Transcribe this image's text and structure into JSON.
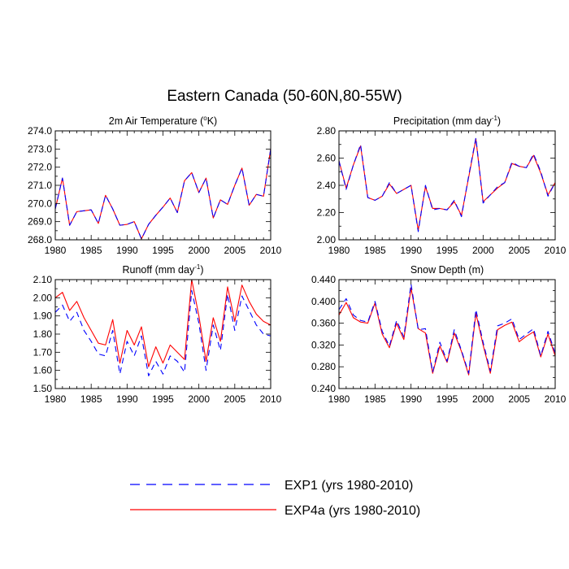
{
  "figure": {
    "title": "Eastern Canada (50-60N,80-55W)",
    "legend": [
      {
        "label": "EXP1 (yrs 1980-2010)",
        "color": "#0000ff",
        "style": "dashed"
      },
      {
        "label": "EXP4a (yrs 1980-2010)",
        "color": "#ff0000",
        "style": "solid"
      }
    ]
  },
  "chart_data": [
    {
      "type": "line",
      "title": "2m Air Temperature (°K)",
      "title_parts": [
        "2m Air Temperature (",
        "o",
        "K)"
      ],
      "xlim": [
        1980,
        2010
      ],
      "ylim": [
        268.0,
        274.0
      ],
      "x_ticks": [
        1980,
        1985,
        1990,
        1995,
        2000,
        2005,
        2010
      ],
      "y_ticks": [
        "268.0",
        "269.0",
        "270.0",
        "271.0",
        "272.0",
        "273.0",
        "274.0"
      ],
      "x": [
        1980,
        1981,
        1982,
        1983,
        1984,
        1985,
        1986,
        1987,
        1988,
        1989,
        1990,
        1991,
        1992,
        1993,
        1994,
        1995,
        1996,
        1997,
        1998,
        1999,
        2000,
        2001,
        2002,
        2003,
        2004,
        2005,
        2006,
        2007,
        2008,
        2009,
        2010
      ],
      "series": [
        {
          "name": "EXP1",
          "values": [
            269.7,
            271.4,
            268.8,
            269.55,
            269.6,
            269.65,
            268.9,
            270.45,
            269.7,
            268.8,
            268.85,
            269.0,
            268.05,
            268.85,
            269.35,
            269.8,
            270.3,
            269.5,
            271.25,
            271.7,
            270.6,
            271.4,
            269.2,
            270.2,
            269.95,
            271.0,
            271.95,
            269.9,
            270.5,
            270.4,
            273.0
          ]
        },
        {
          "name": "EXP4a",
          "values": [
            269.7,
            271.4,
            268.8,
            269.55,
            269.6,
            269.65,
            268.9,
            270.45,
            269.7,
            268.8,
            268.85,
            269.0,
            268.05,
            268.85,
            269.35,
            269.8,
            270.3,
            269.5,
            271.25,
            271.7,
            270.6,
            271.4,
            269.2,
            270.2,
            269.95,
            271.0,
            271.95,
            269.9,
            270.5,
            270.4,
            273.0
          ]
        }
      ]
    },
    {
      "type": "line",
      "title": "Precipitation (mm day-1)",
      "title_parts": [
        "Precipitation (mm day",
        "-1",
        ")"
      ],
      "xlim": [
        1980,
        2010
      ],
      "ylim": [
        2.0,
        2.8
      ],
      "x_ticks": [
        1980,
        1985,
        1990,
        1995,
        2000,
        2005,
        2010
      ],
      "y_ticks": [
        "2.00",
        "2.20",
        "2.40",
        "2.60",
        "2.80"
      ],
      "x": [
        1980,
        1981,
        1982,
        1983,
        1984,
        1985,
        1986,
        1987,
        1988,
        1989,
        1990,
        1991,
        1992,
        1993,
        1994,
        1995,
        1996,
        1997,
        1998,
        1999,
        2000,
        2001,
        2002,
        2003,
        2004,
        2005,
        2006,
        2007,
        2008,
        2009,
        2010
      ],
      "series": [
        {
          "name": "EXP1",
          "values": [
            2.58,
            2.37,
            2.55,
            2.7,
            2.31,
            2.29,
            2.32,
            2.42,
            2.34,
            2.37,
            2.4,
            2.06,
            2.4,
            2.22,
            2.23,
            2.22,
            2.29,
            2.17,
            2.47,
            2.75,
            2.27,
            2.33,
            2.39,
            2.42,
            2.57,
            2.54,
            2.53,
            2.63,
            2.5,
            2.32,
            2.42
          ]
        },
        {
          "name": "EXP4a",
          "values": [
            2.58,
            2.38,
            2.55,
            2.69,
            2.31,
            2.29,
            2.32,
            2.41,
            2.34,
            2.37,
            2.4,
            2.07,
            2.39,
            2.23,
            2.23,
            2.22,
            2.28,
            2.18,
            2.46,
            2.74,
            2.28,
            2.33,
            2.38,
            2.42,
            2.56,
            2.54,
            2.53,
            2.62,
            2.49,
            2.33,
            2.42
          ]
        }
      ]
    },
    {
      "type": "line",
      "title": "Runoff (mm day-1)",
      "title_parts": [
        "Runoff (mm day",
        "-1",
        ")"
      ],
      "xlim": [
        1980,
        2010
      ],
      "ylim": [
        1.5,
        2.1
      ],
      "x_ticks": [
        1980,
        1985,
        1990,
        1995,
        2000,
        2005,
        2010
      ],
      "y_ticks": [
        "1.50",
        "1.60",
        "1.70",
        "1.80",
        "1.90",
        "2.00",
        "2.10"
      ],
      "x": [
        1980,
        1981,
        1982,
        1983,
        1984,
        1985,
        1986,
        1987,
        1988,
        1989,
        1990,
        1991,
        1992,
        1993,
        1994,
        1995,
        1996,
        1997,
        1998,
        1999,
        2000,
        2001,
        2002,
        2003,
        2004,
        2005,
        2006,
        2007,
        2008,
        2009,
        2010
      ],
      "series": [
        {
          "name": "EXP1",
          "values": [
            1.92,
            1.96,
            1.87,
            1.92,
            1.82,
            1.76,
            1.69,
            1.68,
            1.82,
            1.58,
            1.76,
            1.68,
            1.79,
            1.57,
            1.65,
            1.58,
            1.68,
            1.65,
            1.59,
            2.04,
            1.86,
            1.6,
            1.85,
            1.71,
            2.02,
            1.82,
            2.01,
            1.93,
            1.85,
            1.8,
            1.79
          ]
        },
        {
          "name": "EXP4a",
          "values": [
            2.0,
            2.03,
            1.93,
            1.98,
            1.89,
            1.82,
            1.75,
            1.74,
            1.88,
            1.64,
            1.82,
            1.74,
            1.84,
            1.62,
            1.73,
            1.64,
            1.74,
            1.7,
            1.66,
            2.1,
            1.9,
            1.65,
            1.89,
            1.76,
            2.06,
            1.87,
            2.07,
            1.98,
            1.91,
            1.87,
            1.85
          ]
        }
      ]
    },
    {
      "type": "line",
      "title": "Snow Depth (m)",
      "title_parts": [
        "Snow Depth (m)",
        "",
        ""
      ],
      "xlim": [
        1980,
        2010
      ],
      "ylim": [
        0.24,
        0.44
      ],
      "x_ticks": [
        1980,
        1985,
        1990,
        1995,
        2000,
        2005,
        2010
      ],
      "y_ticks": [
        "0.240",
        "0.280",
        "0.320",
        "0.360",
        "0.400",
        "0.440"
      ],
      "x": [
        1980,
        1981,
        1982,
        1983,
        1984,
        1985,
        1986,
        1987,
        1988,
        1989,
        1990,
        1991,
        1992,
        1993,
        1994,
        1995,
        1996,
        1997,
        1998,
        1999,
        2000,
        2001,
        2002,
        2003,
        2004,
        2005,
        2006,
        2007,
        2008,
        2009,
        2010
      ],
      "series": [
        {
          "name": "EXP1",
          "values": [
            0.385,
            0.405,
            0.375,
            0.365,
            0.362,
            0.4,
            0.345,
            0.318,
            0.365,
            0.335,
            0.432,
            0.348,
            0.35,
            0.27,
            0.325,
            0.29,
            0.348,
            0.31,
            0.268,
            0.385,
            0.325,
            0.272,
            0.355,
            0.36,
            0.368,
            0.33,
            0.34,
            0.35,
            0.3,
            0.345,
            0.305
          ]
        },
        {
          "name": "EXP4a",
          "values": [
            0.375,
            0.398,
            0.37,
            0.362,
            0.36,
            0.397,
            0.34,
            0.315,
            0.36,
            0.33,
            0.425,
            0.35,
            0.342,
            0.268,
            0.318,
            0.288,
            0.342,
            0.308,
            0.265,
            0.378,
            0.32,
            0.268,
            0.348,
            0.356,
            0.362,
            0.326,
            0.336,
            0.344,
            0.298,
            0.34,
            0.3
          ]
        }
      ]
    }
  ]
}
